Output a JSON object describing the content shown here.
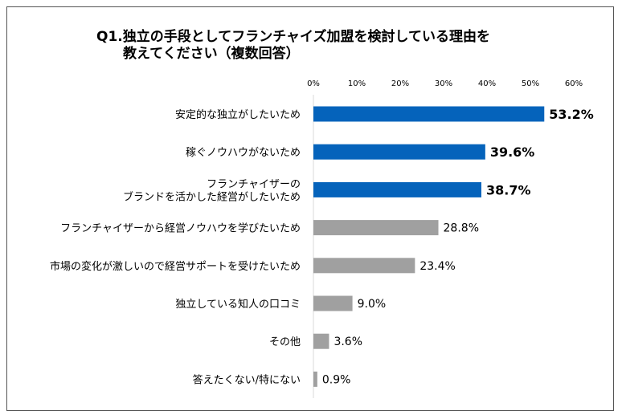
{
  "chart_data": {
    "type": "bar",
    "orientation": "horizontal",
    "title_lines": [
      "Q1.独立の手段としてフランチャイズ加盟を検討している理由を",
      "教えてください（複数回答）"
    ],
    "x_ticks": [
      "0%",
      "10%",
      "20%",
      "30%",
      "40%",
      "50%",
      "60%"
    ],
    "xlim": [
      0,
      60
    ],
    "categories": [
      [
        "安定的な独立がしたいため"
      ],
      [
        "稼ぐノウハウがないため"
      ],
      [
        "フランチャイザーの",
        "ブランドを活かした経営がしたいため"
      ],
      [
        "フランチャイザーから経営ノウハウを学びたいため"
      ],
      [
        "市場の変化が激しいので経営サポートを受けたいため"
      ],
      [
        "独立している知人の口コミ"
      ],
      [
        "その他"
      ],
      [
        "答えたくない/特にない"
      ]
    ],
    "values": [
      53.2,
      39.6,
      38.7,
      28.8,
      23.4,
      9.0,
      3.6,
      0.9
    ],
    "value_labels": [
      "53.2%",
      "39.6%",
      "38.7%",
      "28.8%",
      "23.4%",
      "9.0%",
      "3.6%",
      "0.9%"
    ],
    "highlight_count": 3,
    "colors": {
      "highlight": "#0563BB",
      "normal": "#A0A0A0",
      "axis": "#D9D9D9"
    }
  }
}
